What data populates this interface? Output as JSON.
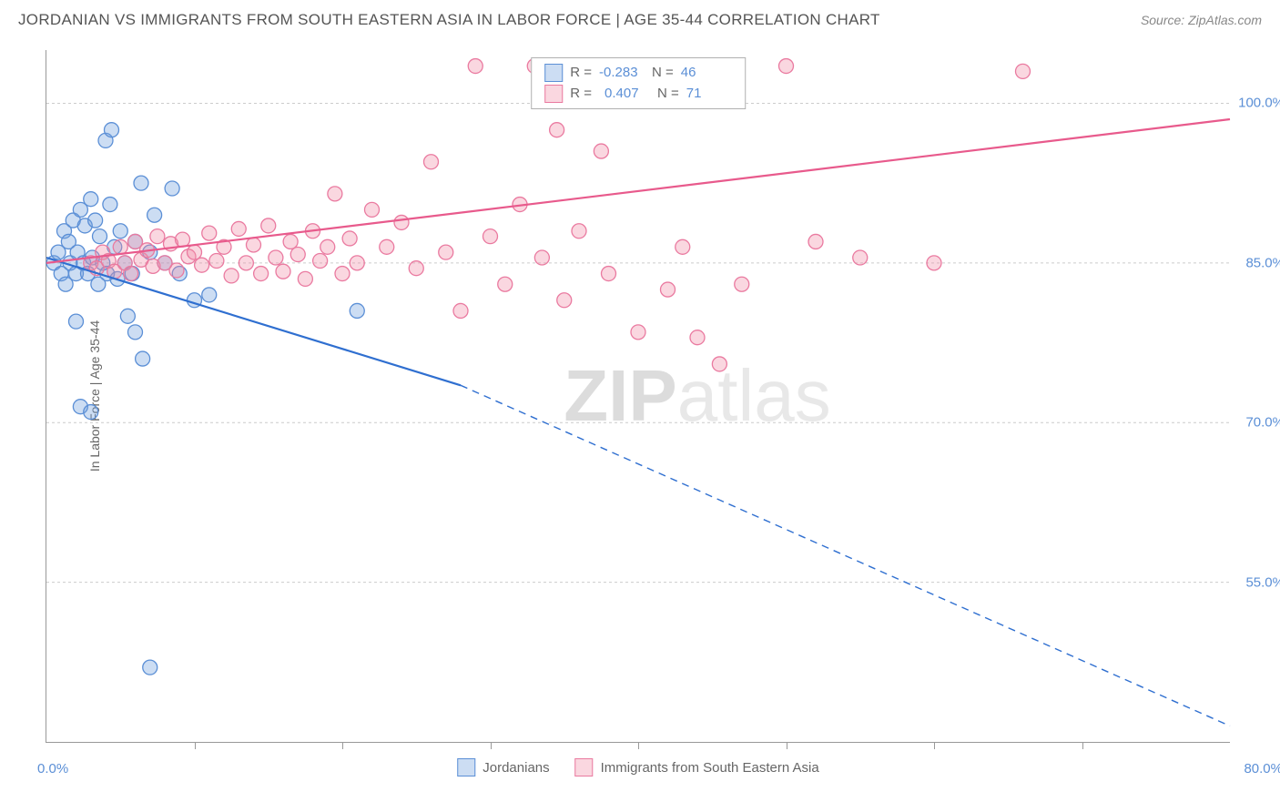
{
  "title": "JORDANIAN VS IMMIGRANTS FROM SOUTH EASTERN ASIA IN LABOR FORCE | AGE 35-44 CORRELATION CHART",
  "source": "Source: ZipAtlas.com",
  "watermark_bold": "ZIP",
  "watermark_light": "atlas",
  "chart": {
    "type": "scatter-with-regression",
    "background_color": "#ffffff",
    "grid_color": "#cccccc",
    "axis_color": "#999999",
    "y_axis_label": "In Labor Force | Age 35-44",
    "y_axis_label_color": "#666666",
    "tick_label_color": "#5b8fd6",
    "xlim": [
      0.0,
      80.0
    ],
    "ylim": [
      40.0,
      105.0
    ],
    "x_left_label": "0.0%",
    "x_right_label": "80.0%",
    "x_tick_positions": [
      10,
      20,
      30,
      40,
      50,
      60,
      70
    ],
    "y_ticks": [
      {
        "value": 100.0,
        "label": "100.0%"
      },
      {
        "value": 85.0,
        "label": "85.0%"
      },
      {
        "value": 70.0,
        "label": "70.0%"
      },
      {
        "value": 55.0,
        "label": "55.0%"
      }
    ],
    "series": [
      {
        "name": "Jordanians",
        "marker_color_fill": "rgba(108,158,220,0.35)",
        "marker_color_stroke": "#5b8fd6",
        "marker_radius": 8,
        "line_color": "#2f6fd0",
        "line_width": 2.2,
        "r_value": "-0.283",
        "n_value": "46",
        "regression": {
          "x1": 0,
          "y1": 85.5,
          "x2_solid": 28,
          "y2_solid": 73.5,
          "x2_dash": 80,
          "y2_dash": 41.5
        },
        "points": [
          [
            0.5,
            85
          ],
          [
            0.8,
            86
          ],
          [
            1.0,
            84
          ],
          [
            1.2,
            88
          ],
          [
            1.3,
            83
          ],
          [
            1.5,
            87
          ],
          [
            1.6,
            85
          ],
          [
            1.8,
            89
          ],
          [
            2.0,
            84
          ],
          [
            2.1,
            86
          ],
          [
            2.3,
            90
          ],
          [
            2.5,
            85
          ],
          [
            2.6,
            88.5
          ],
          [
            2.8,
            84
          ],
          [
            3.0,
            91
          ],
          [
            3.1,
            85.5
          ],
          [
            3.3,
            89
          ],
          [
            3.5,
            83
          ],
          [
            3.6,
            87.5
          ],
          [
            3.8,
            85
          ],
          [
            4.0,
            96.5
          ],
          [
            4.1,
            84
          ],
          [
            4.4,
            97.5
          ],
          [
            4.6,
            86.5
          ],
          [
            4.8,
            83.5
          ],
          [
            5.0,
            88
          ],
          [
            5.3,
            85
          ],
          [
            5.5,
            80
          ],
          [
            5.8,
            84
          ],
          [
            6.0,
            87
          ],
          [
            6.4,
            92.5
          ],
          [
            7.0,
            86
          ],
          [
            7.3,
            89.5
          ],
          [
            8.0,
            85
          ],
          [
            8.5,
            92
          ],
          [
            9.0,
            84
          ],
          [
            2.0,
            79.5
          ],
          [
            2.3,
            71.5
          ],
          [
            3.0,
            71.0
          ],
          [
            6.0,
            78.5
          ],
          [
            6.5,
            76.0
          ],
          [
            10.0,
            81.5
          ],
          [
            11.0,
            82.0
          ],
          [
            7.0,
            47.0
          ],
          [
            21.0,
            80.5
          ],
          [
            4.3,
            90.5
          ]
        ]
      },
      {
        "name": "Immigrants from South Eastern Asia",
        "marker_color_fill": "rgba(240,140,165,0.35)",
        "marker_color_stroke": "#ea7aa0",
        "marker_radius": 8,
        "line_color": "#e85a8c",
        "line_width": 2.2,
        "r_value": "0.407",
        "n_value": "71",
        "regression": {
          "x1": 0,
          "y1": 85.0,
          "x2_solid": 80,
          "y2_solid": 98.5,
          "x2_dash": 80,
          "y2_dash": 98.5
        },
        "points": [
          [
            3.0,
            85
          ],
          [
            3.4,
            84.5
          ],
          [
            3.8,
            86
          ],
          [
            4.2,
            85.2
          ],
          [
            4.6,
            84.2
          ],
          [
            5.0,
            86.5
          ],
          [
            5.3,
            85
          ],
          [
            5.7,
            84
          ],
          [
            6.0,
            87
          ],
          [
            6.4,
            85.3
          ],
          [
            6.8,
            86.2
          ],
          [
            7.2,
            84.7
          ],
          [
            7.5,
            87.5
          ],
          [
            8.0,
            85
          ],
          [
            8.4,
            86.8
          ],
          [
            8.8,
            84.3
          ],
          [
            9.2,
            87.2
          ],
          [
            9.6,
            85.6
          ],
          [
            10.0,
            86
          ],
          [
            10.5,
            84.8
          ],
          [
            11.0,
            87.8
          ],
          [
            11.5,
            85.2
          ],
          [
            12.0,
            86.5
          ],
          [
            12.5,
            83.8
          ],
          [
            13.0,
            88.2
          ],
          [
            13.5,
            85
          ],
          [
            14.0,
            86.7
          ],
          [
            14.5,
            84
          ],
          [
            15.0,
            88.5
          ],
          [
            15.5,
            85.5
          ],
          [
            16.0,
            84.2
          ],
          [
            16.5,
            87
          ],
          [
            17.0,
            85.8
          ],
          [
            17.5,
            83.5
          ],
          [
            18.0,
            88
          ],
          [
            18.5,
            85.2
          ],
          [
            19.0,
            86.5
          ],
          [
            19.5,
            91.5
          ],
          [
            20.0,
            84
          ],
          [
            20.5,
            87.3
          ],
          [
            21.0,
            85
          ],
          [
            22.0,
            90
          ],
          [
            23.0,
            86.5
          ],
          [
            24.0,
            88.8
          ],
          [
            25.0,
            84.5
          ],
          [
            26.0,
            94.5
          ],
          [
            27.0,
            86
          ],
          [
            28.0,
            80.5
          ],
          [
            29.0,
            103.5
          ],
          [
            30.0,
            87.5
          ],
          [
            31.0,
            83
          ],
          [
            32.0,
            90.5
          ],
          [
            33.0,
            103.5
          ],
          [
            33.5,
            85.5
          ],
          [
            34.5,
            97.5
          ],
          [
            35.0,
            81.5
          ],
          [
            36.0,
            88
          ],
          [
            37.5,
            95.5
          ],
          [
            38.0,
            84
          ],
          [
            40.0,
            78.5
          ],
          [
            41.0,
            103.5
          ],
          [
            42.0,
            82.5
          ],
          [
            43.0,
            86.5
          ],
          [
            44.0,
            78.0
          ],
          [
            45.5,
            75.5
          ],
          [
            47.0,
            83
          ],
          [
            50.0,
            103.5
          ],
          [
            52.0,
            87
          ],
          [
            55.0,
            85.5
          ],
          [
            60.0,
            85
          ],
          [
            66.0,
            103.0
          ]
        ]
      }
    ],
    "legend_top": {
      "border_color": "#b0b0b0",
      "label_r": "R =",
      "label_n": "N ="
    },
    "legend_bottom": [
      {
        "label": "Jordanians",
        "fill": "rgba(108,158,220,0.35)",
        "stroke": "#5b8fd6"
      },
      {
        "label": "Immigrants from South Eastern Asia",
        "fill": "rgba(240,140,165,0.35)",
        "stroke": "#ea7aa0"
      }
    ]
  }
}
